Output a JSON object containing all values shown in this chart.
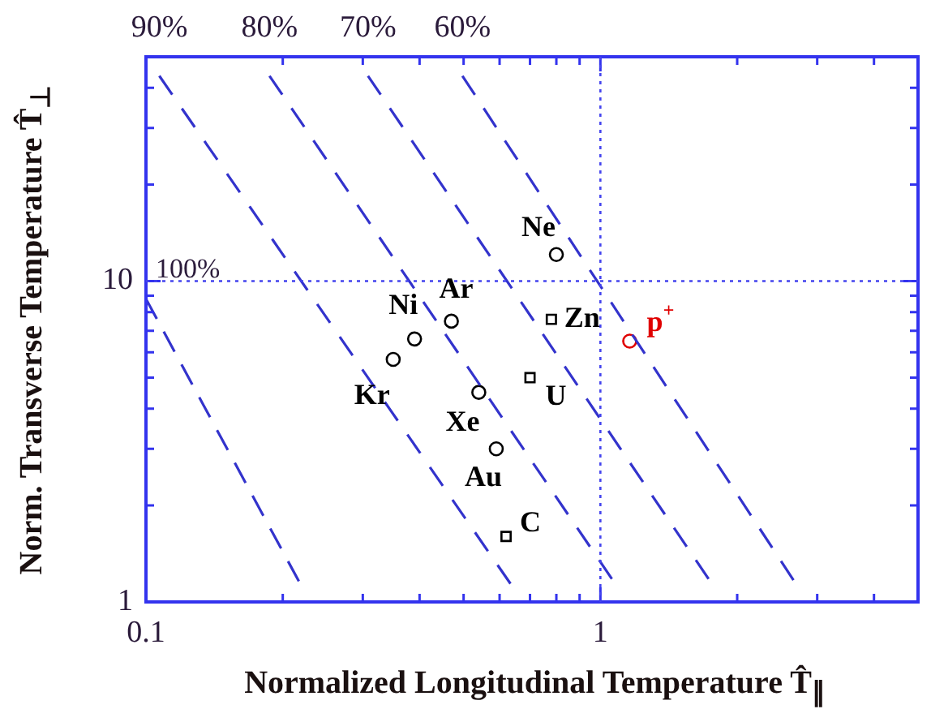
{
  "chart_data": {
    "type": "scatter",
    "xlabel": "Normalized Longitudinal Temperature T̂$_{∥}$",
    "ylabel": "Norm. Transverse Temperature T̂$_{⊥}$",
    "log": "xy",
    "xlim": [
      0.1,
      5
    ],
    "xticks": [
      0.1,
      {
        "value": 0.2,
        "label": null
      },
      {
        "value": 0.3,
        "label": null
      },
      {
        "value": 0.4,
        "label": null
      },
      {
        "value": 0.5,
        "label": null
      },
      {
        "value": 0.6,
        "label": null
      },
      {
        "value": 0.7,
        "label": null
      },
      {
        "value": 0.8,
        "label": null
      },
      {
        "value": 0.9,
        "label": null
      },
      1,
      {
        "value": 2,
        "label": null
      },
      {
        "value": 3,
        "label": null
      },
      {
        "value": 4,
        "label": null
      },
      {
        "value": 5,
        "label": null
      }
    ],
    "ylim": [
      1,
      50
    ],
    "yticks": [
      1,
      {
        "value": 2,
        "label": null
      },
      {
        "value": 3,
        "label": null
      },
      {
        "value": 4,
        "label": null
      },
      {
        "value": 5,
        "label": null
      },
      {
        "value": 6,
        "label": null
      },
      {
        "value": 7,
        "label": null
      },
      {
        "value": 8,
        "label": null
      },
      {
        "value": 9,
        "label": null
      },
      10,
      {
        "value": 20,
        "label": null
      },
      {
        "value": 30,
        "label": null
      },
      {
        "value": 40,
        "label": null
      },
      {
        "value": 50,
        "label": null
      }
    ],
    "series": [
      {
        "type": "line",
        "color": "#3333cc",
        "line_style": "dashed",
        "marker": "none",
        "x": [
          0.1,
          0.217
        ],
        "values": [
          8.8,
          1.16
        ]
      },
      {
        "type": "line",
        "name": "90%",
        "color": "#3333cc",
        "line_style": "dashed",
        "marker": "none",
        "x": [
          0.107,
          0.634
        ],
        "values": [
          43.6,
          1.14
        ]
      },
      {
        "type": "line",
        "name": "80%",
        "color": "#3333cc",
        "line_style": "dashed",
        "marker": "none",
        "x": [
          0.187,
          1.06
        ],
        "values": [
          43.6,
          1.18
        ]
      },
      {
        "type": "line",
        "name": "70%",
        "color": "#3333cc",
        "line_style": "dashed",
        "marker": "none",
        "x": [
          0.308,
          1.73
        ],
        "values": [
          43.6,
          1.18
        ]
      },
      {
        "type": "line",
        "name": "60%",
        "color": "#3333cc",
        "line_style": "dashed",
        "marker": "none",
        "x": [
          0.497,
          2.66
        ],
        "values": [
          43.6,
          1.17
        ]
      },
      {
        "name": "Ne",
        "color": "#000000",
        "marker": "circle",
        "x": [
          0.8
        ],
        "values": [
          12.1
        ]
      },
      {
        "name": "Ar",
        "color": "#000000",
        "marker": "circle",
        "x": [
          0.47
        ],
        "values": [
          7.5
        ]
      },
      {
        "name": "Ni",
        "color": "#000000",
        "marker": "circle",
        "x": [
          0.39
        ],
        "values": [
          6.6
        ]
      },
      {
        "name": "Kr",
        "color": "#000000",
        "marker": "circle",
        "x": [
          0.35
        ],
        "values": [
          5.7
        ]
      },
      {
        "name": "Xe",
        "color": "#000000",
        "marker": "circle",
        "x": [
          0.54
        ],
        "values": [
          4.5
        ]
      },
      {
        "name": "Au",
        "color": "#000000",
        "marker": "circle",
        "x": [
          0.59
        ],
        "values": [
          3.0
        ]
      },
      {
        "name": "C",
        "color": "#000000",
        "marker": "square",
        "x": [
          0.62
        ],
        "values": [
          1.6
        ]
      },
      {
        "name": "U",
        "color": "#000000",
        "marker": "square",
        "x": [
          0.7
        ],
        "values": [
          5.0
        ]
      },
      {
        "name": "Zn",
        "color": "#000000",
        "marker": "square",
        "x": [
          0.78
        ],
        "values": [
          7.6
        ]
      },
      {
        "name": "p$^{+}$",
        "color": "#e00000",
        "marker": "circle",
        "x": [
          1.16
        ],
        "values": [
          6.5
        ]
      }
    ],
    "annotations": [
      "100%"
    ],
    "ref_lines": [
      {
        "axis": "y",
        "value": 10,
        "color": "#4444ee",
        "line_style": "dotted"
      },
      {
        "axis": "x",
        "value": 1,
        "color": "#4444ee",
        "line_style": "dotted"
      }
    ]
  }
}
